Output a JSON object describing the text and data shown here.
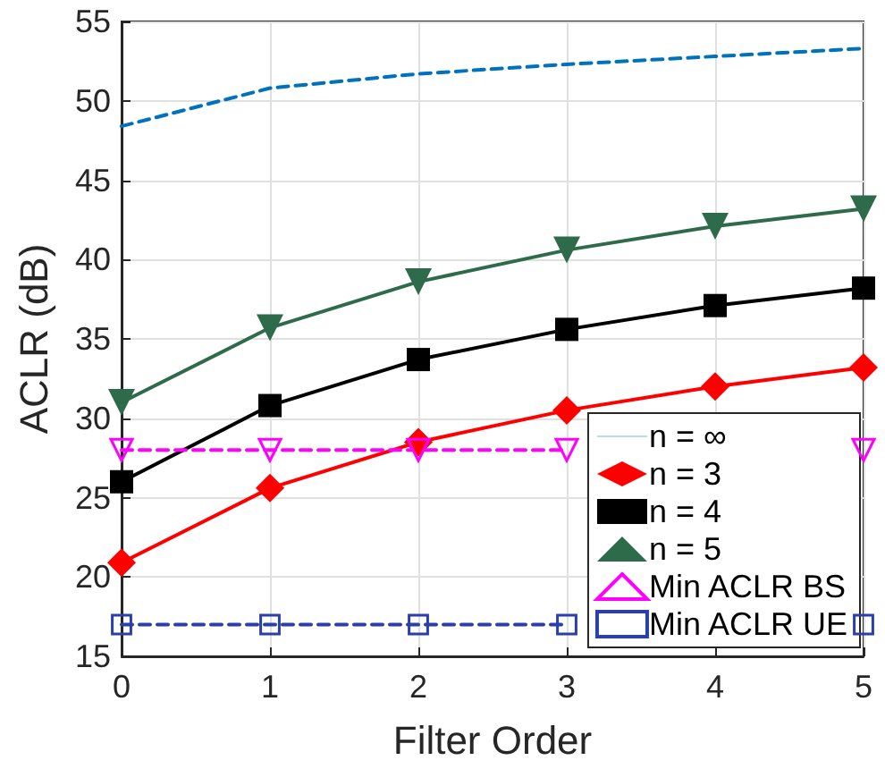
{
  "chart_data": {
    "type": "line",
    "xlabel": "Filter Order",
    "ylabel": "ACLR (dB)",
    "x": [
      0,
      1,
      2,
      3,
      4,
      5
    ],
    "xlim": [
      0,
      5
    ],
    "xticks": [
      0,
      1,
      2,
      3,
      4,
      5
    ],
    "ylim": [
      15,
      55
    ],
    "yticks": [
      15,
      20,
      25,
      30,
      35,
      40,
      45,
      50,
      55
    ],
    "grid": true,
    "legend": "bottom right",
    "series": [
      {
        "name": "n = ∞",
        "color": "#0072bd",
        "values": [
          48.4,
          50.8,
          51.7,
          52.3,
          52.8,
          53.3
        ],
        "marker": "none",
        "line_style": "dashed"
      },
      {
        "name": "n = 3",
        "color": "#ff0000",
        "values": [
          20.9,
          25.6,
          28.5,
          30.5,
          32,
          33.2
        ],
        "marker": "diamond",
        "line_style": "solid"
      },
      {
        "name": "n = 4",
        "color": "#000000",
        "values": [
          26,
          30.8,
          33.7,
          35.6,
          37.1,
          38.2
        ],
        "marker": "square",
        "line_style": "solid"
      },
      {
        "name": "n = 5",
        "color": "#2e6b4a",
        "values": [
          31,
          35.7,
          38.6,
          40.6,
          42.1,
          43.2
        ],
        "marker": "triangle",
        "line_style": "solid"
      },
      {
        "name": "Min ACLR BS",
        "color": "#ff00ff",
        "values": [
          28,
          28,
          28,
          28,
          null,
          28
        ],
        "marker": "triangle",
        "line_style": "dashed"
      },
      {
        "name": "Min ACLR UE",
        "color": "#2b3fa8",
        "values": [
          17,
          17,
          17,
          17,
          null,
          17
        ],
        "marker": "square",
        "line_style": "dashed"
      }
    ]
  }
}
